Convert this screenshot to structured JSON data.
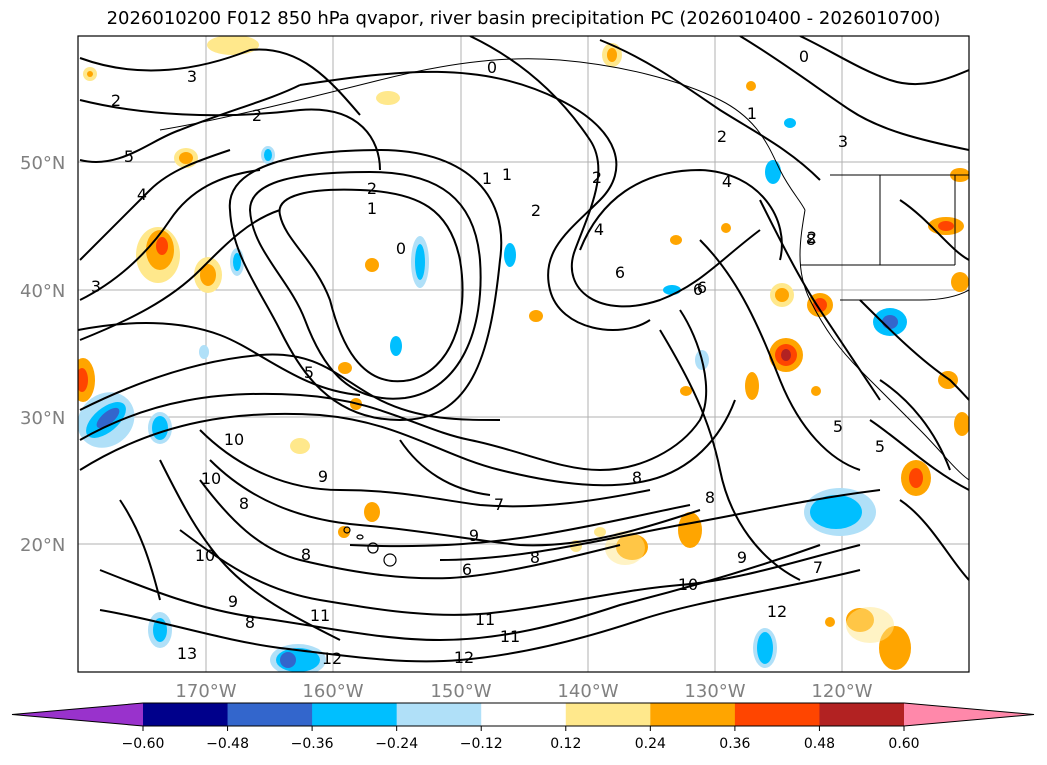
{
  "title": "2026010200 F012 850 hPa qvapor, river basin precipitation PC (2026010400 - 2026010700)",
  "lat_labels": [
    "50°N",
    "40°N",
    "30°N",
    "20°N"
  ],
  "lon_labels": [
    "170°W",
    "160°W",
    "150°W",
    "140°W",
    "130°W",
    "120°W"
  ],
  "contour_labels": [
    "3",
    "2",
    "2",
    "5",
    "4",
    "2",
    "1",
    "0",
    "0",
    "1",
    "1",
    "2",
    "2",
    "4",
    "4",
    "6",
    "2",
    "2",
    "3",
    "1",
    "0",
    "3",
    "5",
    "6",
    "5",
    "10",
    "10",
    "9",
    "7",
    "8",
    "8",
    "9",
    "9",
    "8",
    "8",
    "10",
    "11",
    "11",
    "11",
    "12",
    "12",
    "12",
    "13",
    "9",
    "8",
    "10",
    "6",
    "8",
    "7",
    "5",
    "6",
    "8"
  ],
  "colorbar": {
    "ticks": [
      "−0.60",
      "−0.48",
      "−0.36",
      "−0.24",
      "−0.12",
      "0.12",
      "0.24",
      "0.36",
      "0.48",
      "0.60"
    ],
    "colors": [
      "#9932cc",
      "#00008b",
      "#3366cc",
      "#00bfff",
      "#b0e0f8",
      "#ffffff",
      "#ffe88c",
      "#ffa500",
      "#ff4500",
      "#b22222",
      "#ff88aa"
    ]
  },
  "colors": {
    "grid": "#b0b0b0",
    "axis_text": "#808080",
    "contour": "#000000"
  }
}
